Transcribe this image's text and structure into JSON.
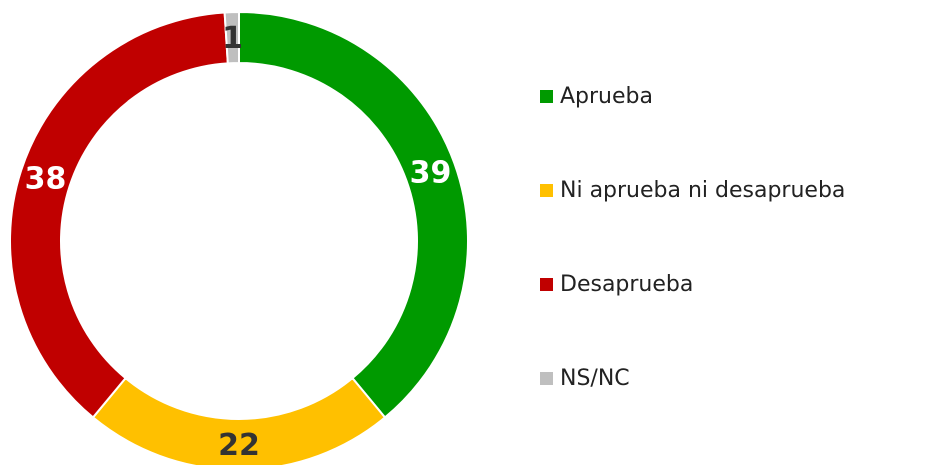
{
  "chart_data": {
    "type": "donut",
    "categories": [
      "Aprueba",
      "Ni aprueba ni desaprueba",
      "Desaprueba",
      "NS/NC"
    ],
    "values": [
      39,
      22,
      38,
      1
    ],
    "colors": [
      "#009a00",
      "#ffc000",
      "#c00000",
      "#bfbfbf"
    ],
    "label_colors": [
      "#ffffff",
      "#333333",
      "#ffffff",
      "#333333"
    ],
    "legend": "right"
  }
}
